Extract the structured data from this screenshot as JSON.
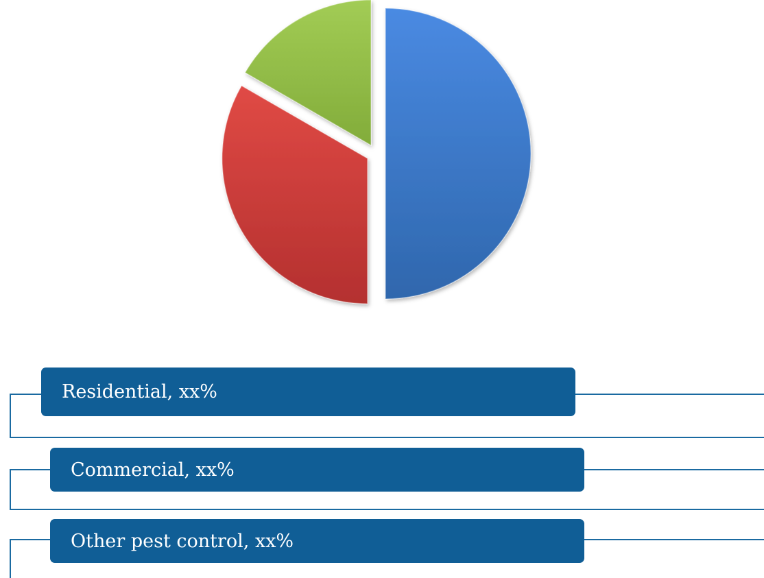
{
  "chart_data": {
    "type": "pie",
    "categories": [
      "Residential",
      "Commercial",
      "Other pest control"
    ],
    "values": [
      50,
      33.33,
      16.67
    ],
    "labels": [
      "Residential, xx%",
      "Commercial, xx%",
      "Other pest control, xx%"
    ],
    "colors": [
      "#3f7fd0",
      "#cc3d3a",
      "#92bf45"
    ],
    "exploded": true,
    "start_angle_deg": 0,
    "direction": "clockwise",
    "legend_placement": "bottom"
  }
}
